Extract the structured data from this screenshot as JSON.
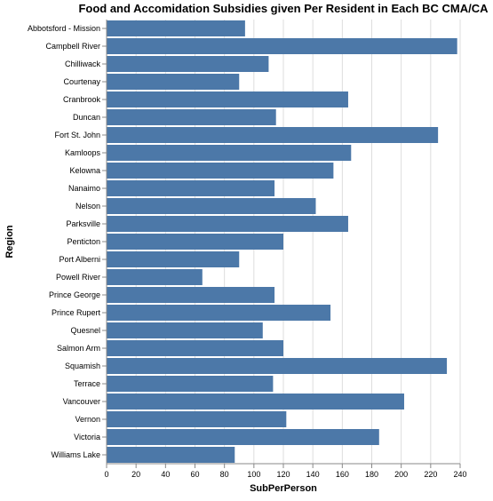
{
  "chart_data": {
    "type": "bar",
    "orientation": "horizontal",
    "title": "Food and Accomidation Subsidies given Per Resident in Each BC CMA/CA",
    "xlabel": "SubPerPerson",
    "ylabel": "Region",
    "xlim": [
      0,
      240
    ],
    "xticks": [
      0,
      20,
      40,
      60,
      80,
      100,
      120,
      140,
      160,
      180,
      200,
      220,
      240
    ],
    "grid": true,
    "bar_color": "#4c78a8",
    "categories": [
      "Abbotsford - Mission",
      "Campbell River",
      "Chilliwack",
      "Courtenay",
      "Cranbrook",
      "Duncan",
      "Fort St. John",
      "Kamloops",
      "Kelowna",
      "Nanaimo",
      "Nelson",
      "Parksville",
      "Penticton",
      "Port Alberni",
      "Powell River",
      "Prince George",
      "Prince Rupert",
      "Quesnel",
      "Salmon Arm",
      "Squamish",
      "Terrace",
      "Vancouver",
      "Vernon",
      "Victoria",
      "Williams Lake"
    ],
    "values": [
      94,
      238,
      110,
      90,
      164,
      115,
      225,
      166,
      154,
      114,
      142,
      164,
      120,
      90,
      65,
      114,
      152,
      106,
      120,
      231,
      113,
      202,
      122,
      185,
      87
    ]
  }
}
